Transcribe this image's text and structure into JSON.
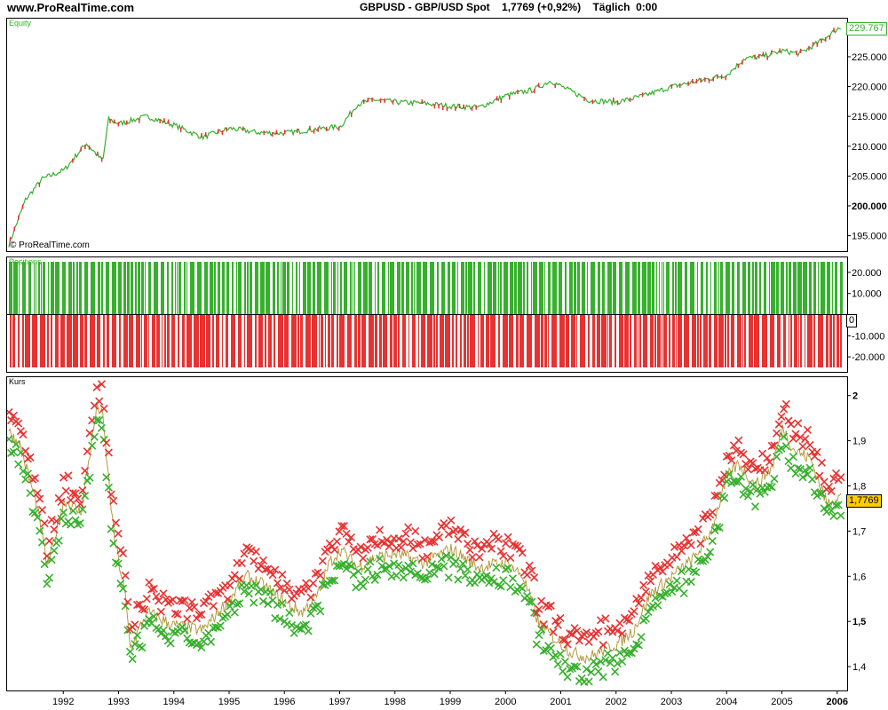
{
  "header": {
    "site": "www.ProRealTime.com",
    "instrument": "GBPUSD - GBP/USD Spot",
    "price": "1,7769",
    "change": "(+0,92%)",
    "period": "Täglich",
    "time": "0:00"
  },
  "x_axis_years": [
    "1992",
    "1993",
    "1994",
    "1995",
    "1996",
    "1997",
    "1998",
    "1999",
    "2000",
    "2001",
    "2002",
    "2003",
    "2004",
    "2005",
    "2006"
  ],
  "panels": {
    "equity": {
      "title": "Equity",
      "watermark": "© ProRealTime.com",
      "last_value": "229.767"
    },
    "positions": {
      "title": "Positions",
      "zero_label": "0"
    },
    "kurs": {
      "title": "Kurs",
      "last_value": "1,7769"
    }
  },
  "colors": {
    "up": "#37b02d",
    "down": "#e83232",
    "equity_line": "#37b02d",
    "last_price_bg": "#ffcc00"
  },
  "chart_data": [
    {
      "type": "line",
      "title": "Equity",
      "yticks": [
        "195.000",
        "200.000",
        "205.000",
        "210.000",
        "215.000",
        "220.000",
        "225.000"
      ],
      "ylim": [
        193000,
        230500
      ],
      "x": [
        1991.0,
        1991.3,
        1991.6,
        1992.0,
        1992.4,
        1992.6,
        1992.7,
        1992.8,
        1993.0,
        1993.5,
        1994.0,
        1994.5,
        1995.0,
        1995.5,
        1996.0,
        1996.5,
        1997.0,
        1997.3,
        1997.6,
        1998.0,
        1998.5,
        1999.0,
        1999.5,
        2000.0,
        2000.5,
        2000.8,
        2001.0,
        2001.5,
        2002.0,
        2002.5,
        2003.0,
        2003.5,
        2004.0,
        2004.3,
        2004.6,
        2005.0,
        2005.3,
        2005.7,
        2006.0
      ],
      "values": [
        193500,
        201000,
        204500,
        206000,
        210500,
        208500,
        207500,
        214500,
        213800,
        215000,
        213500,
        211500,
        213000,
        212300,
        212200,
        212800,
        213300,
        217000,
        217800,
        217400,
        217200,
        216700,
        216500,
        218500,
        219500,
        221000,
        220000,
        217700,
        217400,
        218500,
        220000,
        221000,
        222000,
        224700,
        225000,
        226000,
        225500,
        227700,
        229767
      ],
      "grid": false
    },
    {
      "type": "bar",
      "title": "Positions",
      "yticks": [
        "20.000",
        "10.000",
        "0",
        "-10.000",
        "-20.000"
      ],
      "ylim": [
        -25000,
        25000
      ],
      "long_size": 25000,
      "short_size": -25000
    },
    {
      "type": "scatter",
      "title": "Kurs",
      "yticks": [
        "2",
        "1,9",
        "1,8",
        "1,7",
        "1,6",
        "1,5",
        "1,4"
      ],
      "ylim": [
        1.355,
        2.025
      ],
      "x": [
        1991.0,
        1991.2,
        1991.5,
        1991.7,
        1992.0,
        1992.3,
        1992.6,
        1992.7,
        1992.9,
        1993.1,
        1993.2,
        1993.5,
        1994.0,
        1994.5,
        1995.0,
        1995.3,
        1995.6,
        1996.0,
        1996.3,
        1996.6,
        1996.8,
        1997.0,
        1997.3,
        1997.6,
        1998.0,
        1998.5,
        1999.0,
        1999.5,
        2000.0,
        2000.3,
        2000.6,
        2000.9,
        2001.2,
        2001.5,
        2001.8,
        2002.0,
        2002.3,
        2002.6,
        2003.0,
        2003.4,
        2003.7,
        2004.0,
        2004.2,
        2004.5,
        2004.8,
        2005.0,
        2005.2,
        2005.5,
        2005.8,
        2006.0
      ],
      "values": [
        1.92,
        1.89,
        1.76,
        1.62,
        1.77,
        1.74,
        1.98,
        1.95,
        1.69,
        1.56,
        1.44,
        1.52,
        1.49,
        1.48,
        1.55,
        1.6,
        1.58,
        1.54,
        1.52,
        1.56,
        1.63,
        1.66,
        1.62,
        1.64,
        1.65,
        1.63,
        1.66,
        1.62,
        1.63,
        1.6,
        1.49,
        1.46,
        1.43,
        1.42,
        1.44,
        1.45,
        1.48,
        1.56,
        1.6,
        1.64,
        1.7,
        1.82,
        1.85,
        1.8,
        1.84,
        1.93,
        1.88,
        1.86,
        1.76,
        1.7769
      ],
      "series": [
        {
          "name": "",
          "color": "#e83232",
          "offset": 0.04
        },
        {
          "name": "",
          "color": "#37b02d",
          "offset": -0.03
        }
      ],
      "grid": false
    }
  ]
}
